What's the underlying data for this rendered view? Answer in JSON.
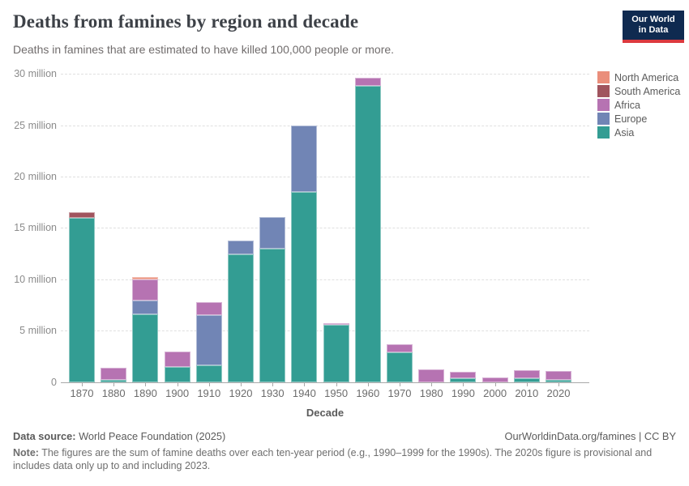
{
  "header": {
    "title": "Deaths from famines by region and decade",
    "subtitle": "Deaths in famines that are estimated to have killed 100,000 people or more.",
    "logo_line1": "Our World",
    "logo_line2": "in Data"
  },
  "chart_data": {
    "type": "bar",
    "stacked": true,
    "title": "Deaths from famines by region and decade",
    "xlabel": "Decade",
    "ylabel": "",
    "unit": "million deaths",
    "ylim": [
      0,
      30
    ],
    "grid": true,
    "legend_position": "right",
    "yticks": [
      {
        "value": 0,
        "label": "0"
      },
      {
        "value": 5,
        "label": "5 million"
      },
      {
        "value": 10,
        "label": "10 million"
      },
      {
        "value": 15,
        "label": "15 million"
      },
      {
        "value": 20,
        "label": "20 million"
      },
      {
        "value": 25,
        "label": "25 million"
      },
      {
        "value": 30,
        "label": "30 million"
      }
    ],
    "categories": [
      "1870",
      "1880",
      "1890",
      "1900",
      "1910",
      "1920",
      "1930",
      "1940",
      "1950",
      "1960",
      "1970",
      "1980",
      "1990",
      "2000",
      "2010",
      "2020"
    ],
    "series": [
      {
        "name": "Asia",
        "color": "#339d93",
        "values": [
          15.95,
          0.2,
          6.6,
          1.5,
          1.6,
          12.4,
          13.0,
          18.5,
          5.55,
          28.85,
          2.9,
          0,
          0.35,
          0,
          0.35,
          0.2
        ]
      },
      {
        "name": "Europe",
        "color": "#7185b5",
        "values": [
          0,
          0,
          1.3,
          0,
          4.9,
          1.4,
          3.1,
          6.45,
          0,
          0,
          0,
          0,
          0,
          0,
          0,
          0
        ]
      },
      {
        "name": "Africa",
        "color": "#b673b2",
        "values": [
          0,
          1.15,
          2.1,
          1.5,
          1.3,
          0,
          0,
          0,
          0.2,
          0.8,
          0.75,
          1.25,
          0.65,
          0.45,
          0.8,
          0.9
        ]
      },
      {
        "name": "South America",
        "color": "#a0545e",
        "values": [
          0.6,
          0,
          0,
          0,
          0,
          0,
          0,
          0,
          0,
          0,
          0,
          0,
          0,
          0,
          0,
          0
        ]
      },
      {
        "name": "North America",
        "color": "#ea8e7b",
        "values": [
          0,
          0,
          0.2,
          0,
          0,
          0,
          0,
          0,
          0,
          0,
          0,
          0,
          0,
          0,
          0,
          0
        ]
      }
    ]
  },
  "footer": {
    "datasource_label": "Data source:",
    "datasource_value": " World Peace Foundation (2025)",
    "link": "OurWorldinData.org/famines | CC BY",
    "note_label": "Note:",
    "note_value": " The figures are the sum of famine deaths over each ten-year period (e.g., 1990–1999 for the 1990s). The 2020s figure is provisional and includes data only up to and including 2023."
  }
}
